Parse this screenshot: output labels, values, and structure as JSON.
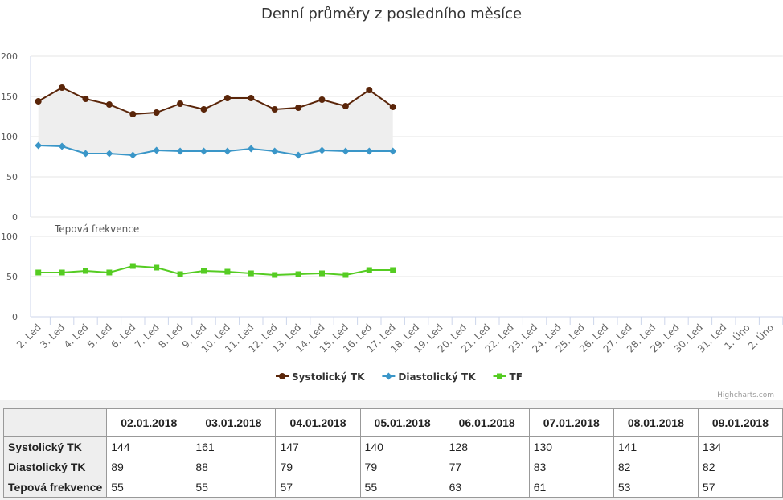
{
  "chart_data": {
    "type": "line",
    "title": "Denní průměry z posledního měsíce",
    "y2_title": "Tepová frekvence",
    "credits": "Highcharts.com",
    "categories": [
      "2. Led",
      "3. Led",
      "4. Led",
      "5. Led",
      "6. Led",
      "7. Led",
      "8. Led",
      "9. Led",
      "10. Led",
      "11. Led",
      "12. Led",
      "13. Led",
      "14. Led",
      "15. Led",
      "16. Led",
      "17. Led",
      "18. Led",
      "19. Led",
      "20. Led",
      "21. Led",
      "22. Led",
      "23. Led",
      "24. Led",
      "25. Led",
      "26. Led",
      "27. Led",
      "28. Led",
      "29. Led",
      "30. Led",
      "31. Led",
      "1. Úno",
      "2. Úno"
    ],
    "series": [
      {
        "name": "Systolický TK",
        "color": "#5a2509",
        "marker": "circle",
        "values": [
          144,
          161,
          147,
          140,
          128,
          130,
          141,
          134,
          148,
          148,
          134,
          136,
          146,
          138,
          158,
          137,
          null,
          null,
          null,
          null,
          null,
          null,
          null,
          null,
          null,
          null,
          null,
          null,
          null,
          null,
          null,
          null
        ]
      },
      {
        "name": "Diastolický TK",
        "color": "#3a96c8",
        "marker": "diamond",
        "values": [
          89,
          88,
          79,
          79,
          77,
          83,
          82,
          82,
          82,
          85,
          82,
          77,
          83,
          82,
          82,
          82,
          null,
          null,
          null,
          null,
          null,
          null,
          null,
          null,
          null,
          null,
          null,
          null,
          null,
          null,
          null,
          null
        ]
      },
      {
        "name": "TF",
        "color": "#55cc22",
        "marker": "square",
        "axis": "y2",
        "values": [
          55,
          55,
          57,
          55,
          63,
          61,
          53,
          57,
          56,
          54,
          52,
          53,
          54,
          52,
          58,
          58,
          null,
          null,
          null,
          null,
          null,
          null,
          null,
          null,
          null,
          null,
          null,
          null,
          null,
          null,
          null,
          null
        ]
      }
    ],
    "range_fill": "#eeeeee",
    "ylim": [
      0,
      200
    ],
    "yticks": [
      0,
      50,
      100,
      150,
      200
    ],
    "y2lim": [
      0,
      100
    ],
    "y2ticks": [
      0,
      50,
      100
    ],
    "grid": true,
    "legend": "bottom"
  },
  "table": {
    "columns": [
      "02.01.2018",
      "03.01.2018",
      "04.01.2018",
      "05.01.2018",
      "06.01.2018",
      "07.01.2018",
      "08.01.2018",
      "09.01.2018"
    ],
    "row_labels": [
      "Systolický TK",
      "Diastolický TK",
      "Tepová frekvence"
    ]
  }
}
